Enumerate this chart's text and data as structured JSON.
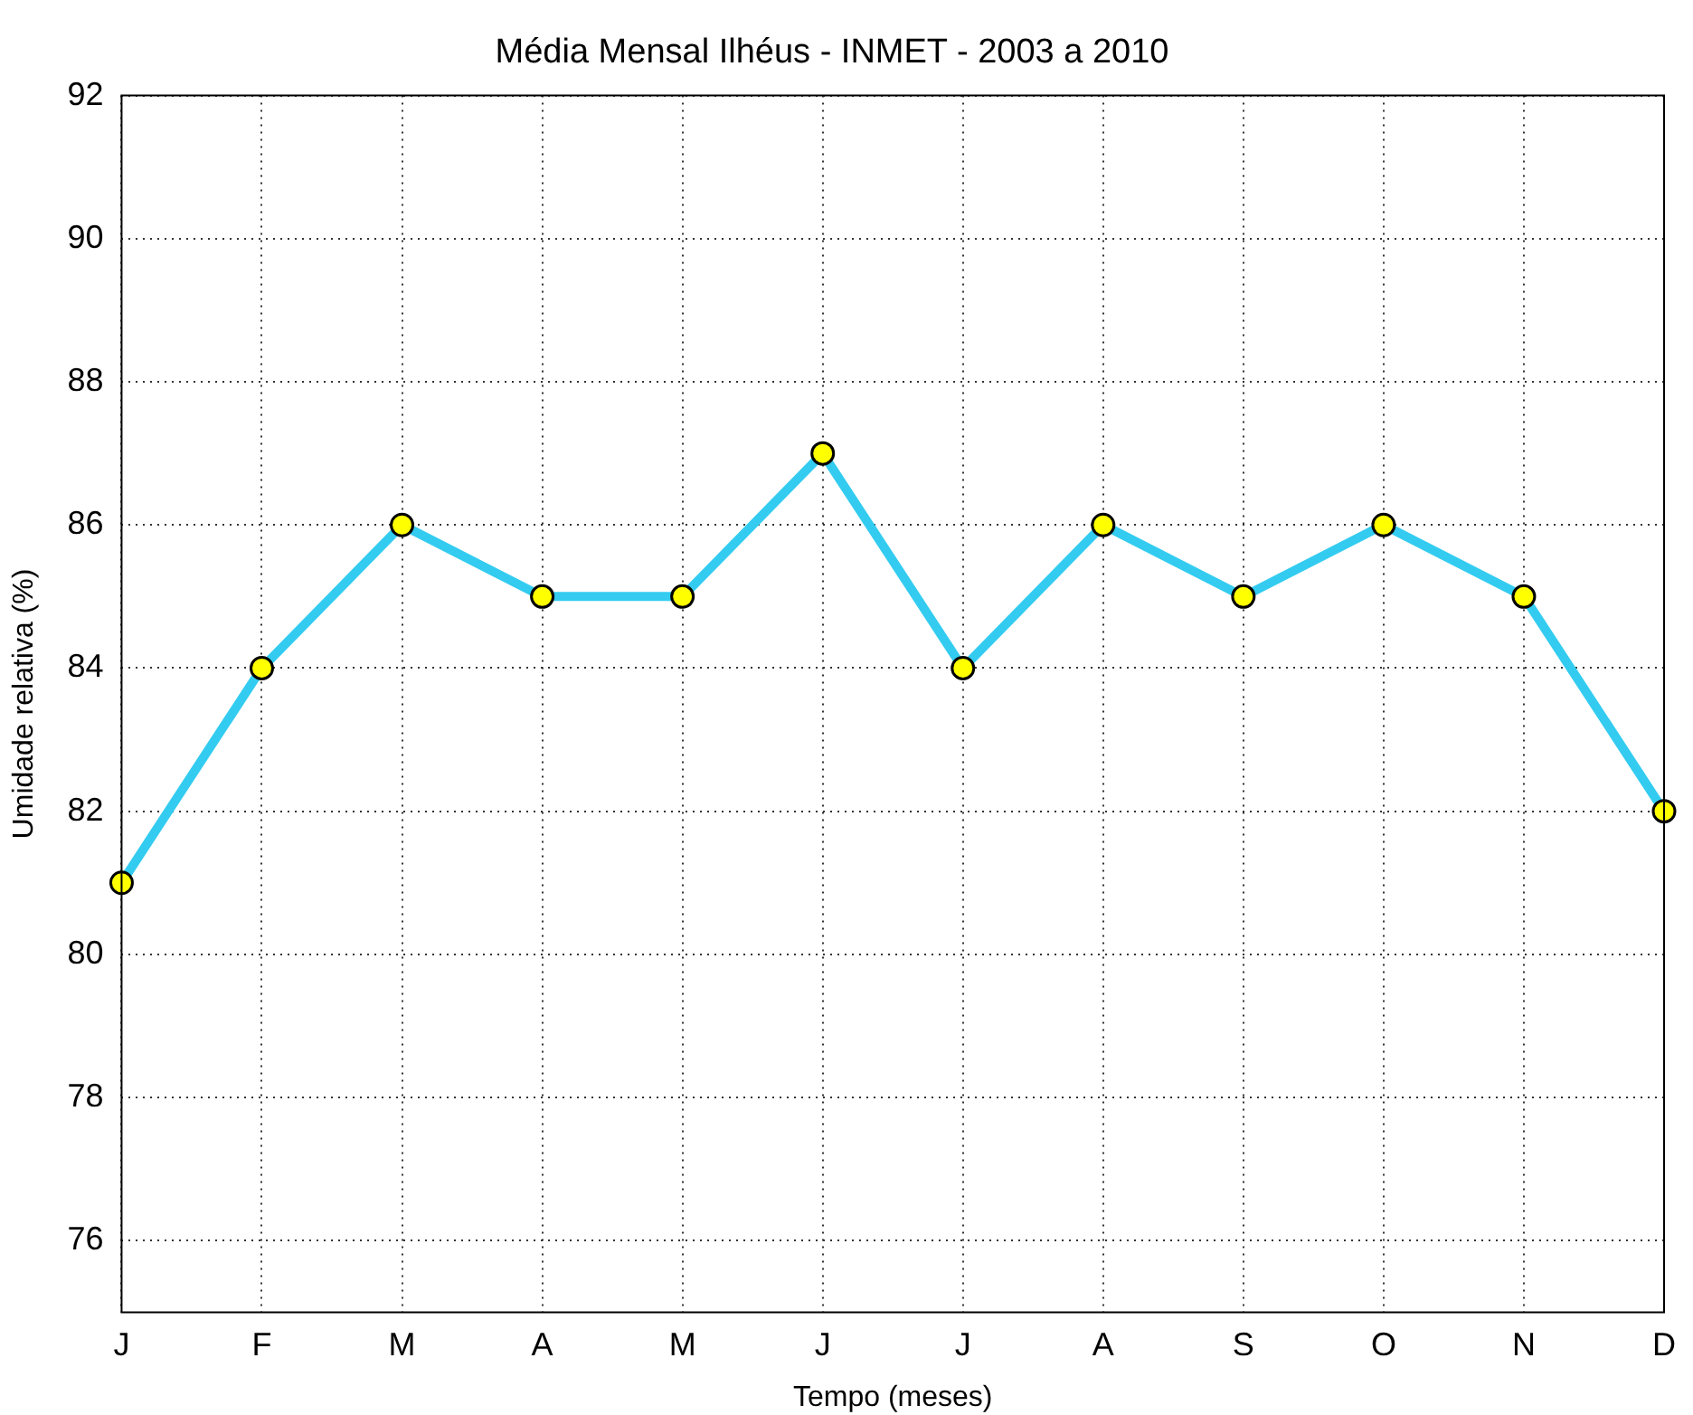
{
  "chart_data": {
    "type": "line",
    "title": "Média Mensal Ilhéus - INMET - 2003 a 2010",
    "xlabel": "Tempo (meses)",
    "ylabel": "Umidade relativa (%)",
    "categories": [
      "J",
      "F",
      "M",
      "A",
      "M",
      "J",
      "J",
      "A",
      "S",
      "O",
      "N",
      "D"
    ],
    "series": [
      {
        "color": "#33ccf0",
        "values": [
          81,
          84,
          86,
          85,
          85,
          87,
          84,
          86,
          85,
          86,
          85,
          82
        ]
      }
    ],
    "ylim": [
      75,
      92
    ],
    "yticks": [
      76,
      78,
      80,
      82,
      84,
      86,
      88,
      90,
      92
    ],
    "grid": true,
    "marker": "circle",
    "line_style": "solid",
    "legend": false
  }
}
